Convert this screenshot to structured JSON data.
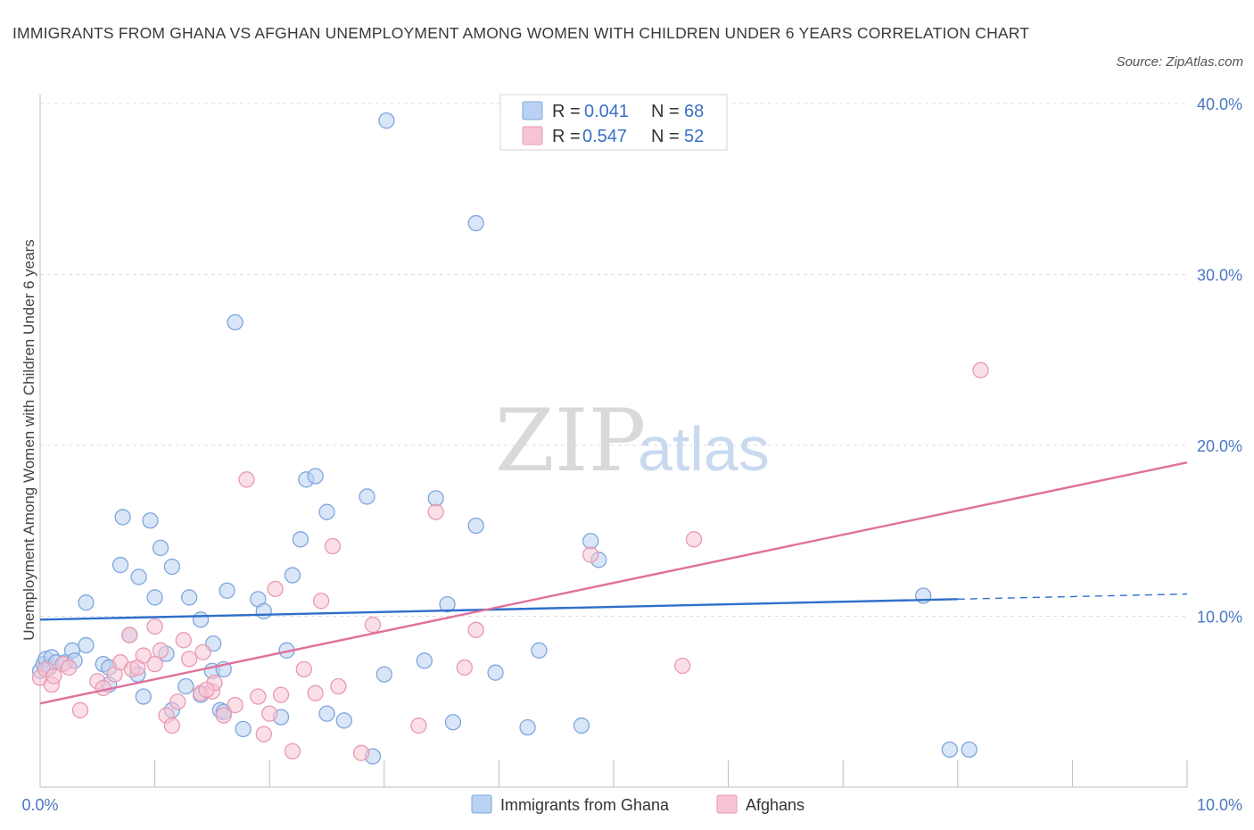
{
  "title": "IMMIGRANTS FROM GHANA VS AFGHAN UNEMPLOYMENT AMONG WOMEN WITH CHILDREN UNDER 6 YEARS CORRELATION CHART",
  "source": "Source: ZipAtlas.com",
  "watermark": {
    "zip": "ZIP",
    "atlas": "atlas"
  },
  "colors": {
    "ghana_fill": "#b9d2f3",
    "ghana_stroke": "#7fa6dd",
    "ghana_line": "#2f6fca",
    "afghan_fill": "#f7c4d4",
    "afghan_stroke": "#e899b3",
    "afghan_line": "#e0709a",
    "grid": "#dcdcdc",
    "tick_label": "#4a78c2"
  },
  "legend": {
    "rows": [
      {
        "r_label": "R = ",
        "r_value": "0.041",
        "n_label": "N = ",
        "n_value": "68"
      },
      {
        "r_label": "R = ",
        "r_value": "0.547",
        "n_label": "N = ",
        "n_value": "52"
      }
    ]
  },
  "chart_data": {
    "type": "scatter",
    "title": "IMMIGRANTS FROM GHANA VS AFGHAN UNEMPLOYMENT AMONG WOMEN WITH CHILDREN UNDER 6 YEARS CORRELATION CHART",
    "xlabel": "",
    "ylabel": "Unemployment Among Women with Children Under 6 years",
    "xlim": [
      0,
      10
    ],
    "ylim": [
      0,
      40
    ],
    "x_tick_labels": [
      "0.0%",
      "10.0%"
    ],
    "y_ticks": [
      10,
      20,
      30,
      40
    ],
    "y_tick_labels": [
      "10.0%",
      "20.0%",
      "30.0%",
      "40.0%"
    ],
    "grid": true,
    "legend_position": "top-center",
    "series": [
      {
        "name": "Immigrants from Ghana",
        "trend": {
          "x_start": 0,
          "y_start": 9.8,
          "x_end": 8.0,
          "y_end": 11.0,
          "x_dashed_end": 10.0,
          "y_dashed_end": 11.3
        },
        "points": [
          [
            0.0,
            6.8
          ],
          [
            0.03,
            7.2
          ],
          [
            0.05,
            7.5
          ],
          [
            0.08,
            7.0
          ],
          [
            0.1,
            7.6
          ],
          [
            0.14,
            7.3
          ],
          [
            0.22,
            7.3
          ],
          [
            0.28,
            8.0
          ],
          [
            0.4,
            8.3
          ],
          [
            0.55,
            7.2
          ],
          [
            0.6,
            7.0
          ],
          [
            0.78,
            8.9
          ],
          [
            0.85,
            6.6
          ],
          [
            0.6,
            6.0
          ],
          [
            0.4,
            10.8
          ],
          [
            0.7,
            13.0
          ],
          [
            0.72,
            15.8
          ],
          [
            0.86,
            12.3
          ],
          [
            0.96,
            15.6
          ],
          [
            1.0,
            11.1
          ],
          [
            1.05,
            14.0
          ],
          [
            1.15,
            12.9
          ],
          [
            1.1,
            7.8
          ],
          [
            1.3,
            11.1
          ],
          [
            1.27,
            5.9
          ],
          [
            1.4,
            5.4
          ],
          [
            1.4,
            9.8
          ],
          [
            1.5,
            6.8
          ],
          [
            1.51,
            8.4
          ],
          [
            1.6,
            6.9
          ],
          [
            1.63,
            11.5
          ],
          [
            1.57,
            4.5
          ],
          [
            1.7,
            27.2
          ],
          [
            1.77,
            3.4
          ],
          [
            1.9,
            11.0
          ],
          [
            1.95,
            10.3
          ],
          [
            2.1,
            4.1
          ],
          [
            2.15,
            8.0
          ],
          [
            2.2,
            12.4
          ],
          [
            2.27,
            14.5
          ],
          [
            2.32,
            18.0
          ],
          [
            2.4,
            18.2
          ],
          [
            2.5,
            16.1
          ],
          [
            2.5,
            4.3
          ],
          [
            2.65,
            3.9
          ],
          [
            2.85,
            17.0
          ],
          [
            2.9,
            1.8
          ],
          [
            3.0,
            6.6
          ],
          [
            3.02,
            39.0
          ],
          [
            3.35,
            7.4
          ],
          [
            3.45,
            16.9
          ],
          [
            3.55,
            10.7
          ],
          [
            3.6,
            3.8
          ],
          [
            3.8,
            33.0
          ],
          [
            3.8,
            15.3
          ],
          [
            3.97,
            6.7
          ],
          [
            4.25,
            3.5
          ],
          [
            4.35,
            8.0
          ],
          [
            4.72,
            3.6
          ],
          [
            4.8,
            14.4
          ],
          [
            4.87,
            13.3
          ],
          [
            7.7,
            11.2
          ],
          [
            7.93,
            2.2
          ],
          [
            8.1,
            2.2
          ],
          [
            0.9,
            5.3
          ],
          [
            1.15,
            4.5
          ],
          [
            0.3,
            7.4
          ],
          [
            1.6,
            4.4
          ]
        ]
      },
      {
        "name": "Afghans",
        "trend": {
          "x_start": 0,
          "y_start": 4.9,
          "x_end": 10.0,
          "y_end": 19.0
        },
        "points": [
          [
            0.0,
            6.4
          ],
          [
            0.05,
            6.9
          ],
          [
            0.1,
            6.0
          ],
          [
            0.2,
            7.2
          ],
          [
            0.25,
            7.0
          ],
          [
            0.35,
            4.5
          ],
          [
            0.5,
            6.2
          ],
          [
            0.55,
            5.8
          ],
          [
            0.65,
            6.6
          ],
          [
            0.7,
            7.3
          ],
          [
            0.78,
            8.9
          ],
          [
            0.8,
            6.9
          ],
          [
            0.85,
            7.0
          ],
          [
            0.9,
            7.7
          ],
          [
            1.0,
            7.2
          ],
          [
            1.0,
            9.4
          ],
          [
            1.05,
            8.0
          ],
          [
            1.1,
            4.2
          ],
          [
            1.15,
            3.6
          ],
          [
            1.2,
            5.0
          ],
          [
            1.25,
            8.6
          ],
          [
            1.3,
            7.5
          ],
          [
            1.4,
            5.5
          ],
          [
            1.42,
            7.9
          ],
          [
            1.5,
            5.6
          ],
          [
            1.52,
            6.1
          ],
          [
            1.6,
            4.2
          ],
          [
            1.7,
            4.8
          ],
          [
            1.8,
            18.0
          ],
          [
            1.9,
            5.3
          ],
          [
            1.95,
            3.1
          ],
          [
            2.0,
            4.3
          ],
          [
            2.05,
            11.6
          ],
          [
            2.1,
            5.4
          ],
          [
            2.2,
            2.1
          ],
          [
            2.3,
            6.9
          ],
          [
            2.4,
            5.5
          ],
          [
            2.45,
            10.9
          ],
          [
            2.55,
            14.1
          ],
          [
            2.6,
            5.9
          ],
          [
            2.8,
            2.0
          ],
          [
            2.9,
            9.5
          ],
          [
            3.3,
            3.6
          ],
          [
            3.45,
            16.1
          ],
          [
            3.7,
            7.0
          ],
          [
            3.8,
            9.2
          ],
          [
            4.8,
            13.6
          ],
          [
            5.6,
            7.1
          ],
          [
            5.7,
            14.5
          ],
          [
            8.2,
            24.4
          ],
          [
            0.12,
            6.5
          ],
          [
            1.45,
            5.7
          ]
        ]
      }
    ]
  }
}
